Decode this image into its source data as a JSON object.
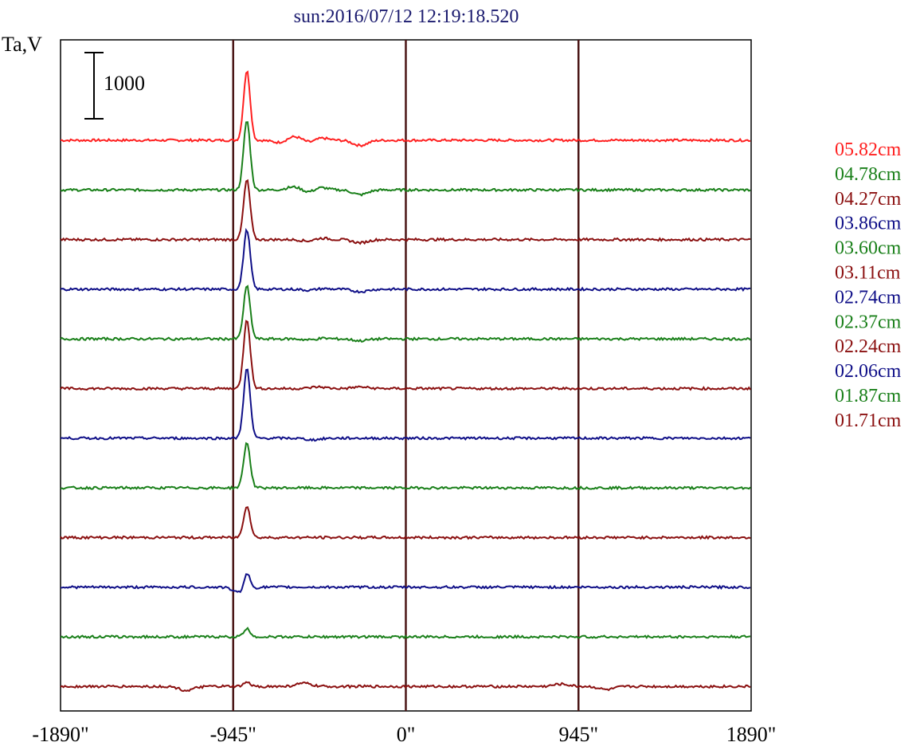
{
  "chart_data": {
    "type": "line",
    "title": "sun:2016/07/12 12:19:18.520",
    "ylabel": "Ta,V",
    "scale_bar_label": "1000",
    "xlim": [
      -1890,
      1890
    ],
    "x_ticks": [
      {
        "value": -1890,
        "label": "-1890\""
      },
      {
        "value": -945,
        "label": "-945\""
      },
      {
        "value": 0,
        "label": "0\""
      },
      {
        "value": 945,
        "label": "945\""
      },
      {
        "value": 1890,
        "label": "1890\""
      }
    ],
    "vertical_lines": [
      -945,
      0,
      945
    ],
    "colors": {
      "red": "#ff2020",
      "green": "#1a801a",
      "darkred": "#8b1010",
      "blue": "#101088",
      "axis": "#000000",
      "vline": "#4a1515"
    },
    "series": [
      {
        "name": "05.82cm",
        "color": "#ff2020",
        "peak": 1050,
        "features": [
          [
            -870,
            4.0
          ],
          [
            -610,
            0.25
          ],
          [
            -480,
            0.3
          ],
          [
            -510,
            -0.3
          ],
          [
            -250,
            -0.32
          ],
          [
            -690,
            -0.15
          ]
        ]
      },
      {
        "name": "04.78cm",
        "color": "#1a801a",
        "peak": 1050,
        "features": [
          [
            -870,
            4.0
          ],
          [
            -610,
            0.2
          ],
          [
            -480,
            0.25
          ],
          [
            -520,
            -0.25
          ],
          [
            -250,
            -0.3
          ]
        ]
      },
      {
        "name": "04.27cm",
        "color": "#8b1010",
        "peak": 900,
        "features": [
          [
            -870,
            3.8
          ],
          [
            -480,
            0.15
          ],
          [
            -520,
            -0.15
          ],
          [
            -250,
            -0.2
          ]
        ]
      },
      {
        "name": "03.86cm",
        "color": "#101088",
        "peak": 900,
        "features": [
          [
            -870,
            3.9
          ],
          [
            -480,
            0.1
          ],
          [
            -510,
            -0.12
          ],
          [
            -250,
            -0.15
          ]
        ]
      },
      {
        "name": "03.60cm",
        "color": "#1a801a",
        "peak": 800,
        "features": [
          [
            -870,
            3.7
          ],
          [
            -480,
            0.1
          ],
          [
            -510,
            -0.12
          ],
          [
            -250,
            -0.12
          ]
        ]
      },
      {
        "name": "03.11cm",
        "color": "#8b1010",
        "peak": 1050,
        "features": [
          [
            -870,
            4.3
          ],
          [
            -480,
            0.1
          ],
          [
            -250,
            0.1
          ]
        ]
      },
      {
        "name": "02.74cm",
        "color": "#101088",
        "peak": 1050,
        "features": [
          [
            -860,
            4.3
          ],
          [
            -510,
            -0.1
          ]
        ]
      },
      {
        "name": "02.37cm",
        "color": "#1a801a",
        "peak": 680,
        "features": [
          [
            -860,
            2.8
          ]
        ]
      },
      {
        "name": "02.24cm",
        "color": "#8b1010",
        "peak": 480,
        "features": [
          [
            -860,
            2.0
          ]
        ]
      },
      {
        "name": "02.06cm",
        "color": "#101088",
        "peak": 270,
        "features": [
          [
            -860,
            1.1
          ],
          [
            -900,
            -0.4
          ]
        ]
      },
      {
        "name": "01.87cm",
        "color": "#1a801a",
        "peak": 120,
        "features": [
          [
            -860,
            0.5
          ]
        ]
      },
      {
        "name": "01.71cm",
        "color": "#8b1010",
        "peak": 60,
        "features": [
          [
            -560,
            0.2
          ],
          [
            -1200,
            -0.25
          ],
          [
            850,
            0.15
          ],
          [
            1100,
            -0.2
          ]
        ]
      }
    ]
  }
}
